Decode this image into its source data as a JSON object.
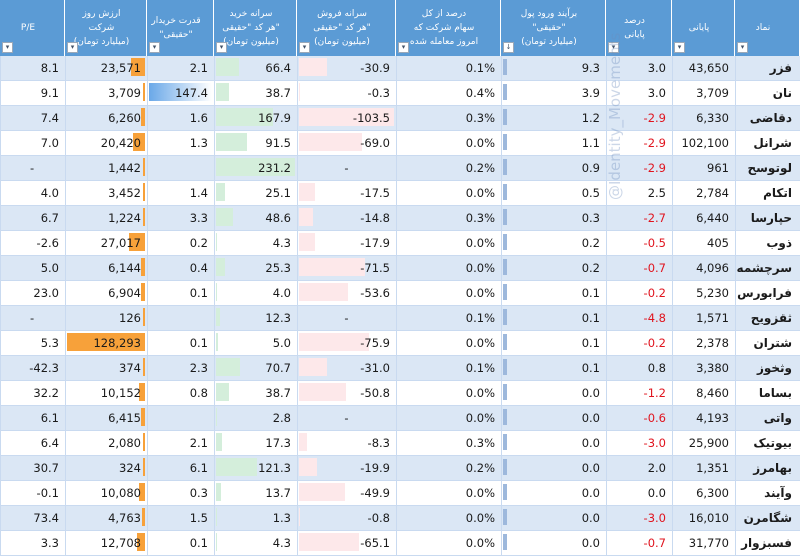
{
  "headers": [
    {
      "key": "symbol",
      "label": "نماد"
    },
    {
      "key": "last",
      "label": "پایانی"
    },
    {
      "key": "pct",
      "label": "درصد\nپایانی"
    },
    {
      "key": "flow",
      "label": "برآیند ورود پول\n\"حقیقی\"\n(میلیارد تومان)"
    },
    {
      "key": "share",
      "label": "درصد از کل\nسهام شرکت که\nامروز معامله شده"
    },
    {
      "key": "sell",
      "label": "سرانه فروش\nهر کد \"حقیقی\"\n(میلیون تومان)"
    },
    {
      "key": "buy",
      "label": "سرانه خرید\nهر کد \"حقیقی\"\n(میلیون تومان)"
    },
    {
      "key": "power",
      "label": "قدرت خریدار\n\"حقیقی\""
    },
    {
      "key": "value",
      "label": "ارزش روز شرکت\n(میلیارد تومان)"
    },
    {
      "key": "pe",
      "label": "P/E"
    }
  ],
  "filter_icons": {
    "default": "▾",
    "sorted": "↓"
  },
  "rows": [
    {
      "symbol": "فزر",
      "last": "43,650",
      "pct": "3.0",
      "flow": "9.3",
      "share": "0.1%",
      "sell": "-30.9",
      "buy": "66.4",
      "power": "2.1",
      "value": "23,571",
      "pe": "8.1"
    },
    {
      "symbol": "نان",
      "last": "3,709",
      "pct": "3.0",
      "flow": "3.9",
      "share": "0.4%",
      "sell": "-0.3",
      "buy": "38.7",
      "power": "147.4",
      "value": "3,709",
      "pe": "9.1"
    },
    {
      "symbol": "دقاضی",
      "last": "6,330",
      "pct": "-2.9",
      "flow": "1.2",
      "share": "0.3%",
      "sell": "-103.5",
      "buy": "167.9",
      "power": "1.6",
      "value": "6,260",
      "pe": "7.4"
    },
    {
      "symbol": "شرانل",
      "last": "102,100",
      "pct": "-2.9",
      "flow": "1.1",
      "share": "0.0%",
      "sell": "-69.0",
      "buy": "91.5",
      "power": "1.3",
      "value": "20,420",
      "pe": "7.0"
    },
    {
      "symbol": "لوتوسح",
      "last": "961",
      "pct": "-2.9",
      "flow": "0.9",
      "share": "0.2%",
      "sell": "-",
      "buy": "231.2",
      "power": "",
      "value": "1,442",
      "pe": "-"
    },
    {
      "symbol": "اتکام",
      "last": "2,784",
      "pct": "2.5",
      "flow": "0.5",
      "share": "0.0%",
      "sell": "-17.5",
      "buy": "25.1",
      "power": "1.4",
      "value": "3,452",
      "pe": "4.0"
    },
    {
      "symbol": "حپارسا",
      "last": "6,440",
      "pct": "-2.7",
      "flow": "0.3",
      "share": "0.3%",
      "sell": "-14.8",
      "buy": "48.6",
      "power": "3.3",
      "value": "1,224",
      "pe": "6.7"
    },
    {
      "symbol": "ذوب",
      "last": "405",
      "pct": "-0.5",
      "flow": "0.2",
      "share": "0.0%",
      "sell": "-17.9",
      "buy": "4.3",
      "power": "0.2",
      "value": "27,017",
      "pe": "-2.6"
    },
    {
      "symbol": "سرچشمه",
      "last": "4,096",
      "pct": "-0.7",
      "flow": "0.2",
      "share": "0.0%",
      "sell": "-71.5",
      "buy": "25.3",
      "power": "0.4",
      "value": "6,144",
      "pe": "5.0"
    },
    {
      "symbol": "فرابورس",
      "last": "5,230",
      "pct": "-0.2",
      "flow": "0.1",
      "share": "0.0%",
      "sell": "-53.6",
      "buy": "4.0",
      "power": "0.1",
      "value": "6,904",
      "pe": "23.0"
    },
    {
      "symbol": "ثقزویح",
      "last": "1,571",
      "pct": "-4.8",
      "flow": "0.1",
      "share": "0.1%",
      "sell": "-",
      "buy": "12.3",
      "power": "",
      "value": "126",
      "pe": "-"
    },
    {
      "symbol": "شتران",
      "last": "2,378",
      "pct": "-0.2",
      "flow": "0.1",
      "share": "0.0%",
      "sell": "-75.9",
      "buy": "5.0",
      "power": "0.1",
      "value": "128,293",
      "pe": "5.3"
    },
    {
      "symbol": "وثخوز",
      "last": "3,380",
      "pct": "0.8",
      "flow": "0.1",
      "share": "0.1%",
      "sell": "-31.0",
      "buy": "70.7",
      "power": "2.3",
      "value": "374",
      "pe": "-42.3"
    },
    {
      "symbol": "بساما",
      "last": "8,460",
      "pct": "-1.2",
      "flow": "0.0",
      "share": "0.0%",
      "sell": "-50.8",
      "buy": "38.7",
      "power": "0.8",
      "value": "10,152",
      "pe": "32.2"
    },
    {
      "symbol": "واتی",
      "last": "4,193",
      "pct": "-0.6",
      "flow": "0.0",
      "share": "0.0%",
      "sell": "-",
      "buy": "2.8",
      "power": "",
      "value": "6,415",
      "pe": "6.1"
    },
    {
      "symbol": "بیوتیک",
      "last": "25,900",
      "pct": "-3.0",
      "flow": "0.0",
      "share": "0.3%",
      "sell": "-8.3",
      "buy": "17.3",
      "power": "2.1",
      "value": "2,080",
      "pe": "6.4"
    },
    {
      "symbol": "بهامرز",
      "last": "1,351",
      "pct": "2.0",
      "flow": "0.0",
      "share": "0.2%",
      "sell": "-19.9",
      "buy": "121.3",
      "power": "6.1",
      "value": "324",
      "pe": "30.7"
    },
    {
      "symbol": "وآیند",
      "last": "6,300",
      "pct": "0.0",
      "flow": "0.0",
      "share": "0.0%",
      "sell": "-49.9",
      "buy": "13.7",
      "power": "0.3",
      "value": "10,080",
      "pe": "-0.1"
    },
    {
      "symbol": "شگامرن",
      "last": "16,010",
      "pct": "-3.0",
      "flow": "0.0",
      "share": "0.0%",
      "sell": "-0.8",
      "buy": "1.3",
      "power": "1.5",
      "value": "4,763",
      "pe": "73.4"
    },
    {
      "symbol": "فسبزوار",
      "last": "31,770",
      "pct": "-0.7",
      "flow": "0.0",
      "share": "0.0%",
      "sell": "-65.1",
      "buy": "4.3",
      "power": "0.1",
      "value": "12,708",
      "pe": "3.3"
    }
  ],
  "watermark": "@Identity_Movements",
  "colors": {
    "header": "#5b9bd5",
    "band": "#dbe7f5",
    "negative": "#e0141e",
    "buy_bar": "#d4eedb",
    "sell_bar": "#fde8ea",
    "value_bar": "#f7a13a",
    "power_bar": "#6aa8e8"
  }
}
